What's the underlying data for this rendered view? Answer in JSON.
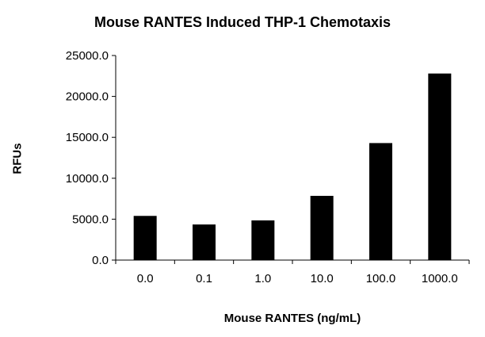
{
  "chart_data": {
    "type": "bar",
    "title": "Mouse RANTES Induced THP-1 Chemotaxis",
    "xlabel": "Mouse RANTES (ng/mL)",
    "ylabel": "RFUs",
    "categories": [
      "0.0",
      "0.1",
      "1.0",
      "10.0",
      "100.0",
      "1000.0"
    ],
    "values": [
      5400,
      4350,
      4850,
      7850,
      14300,
      22800
    ],
    "ylim": [
      0,
      25000
    ],
    "yticks": [
      0,
      5000,
      10000,
      15000,
      20000,
      25000
    ],
    "ytick_labels": [
      "0.0",
      "5000.0",
      "10000.0",
      "15000.0",
      "20000.0",
      "25000.0"
    ],
    "bar_color": "#000000",
    "grid": false,
    "legend": "none"
  }
}
